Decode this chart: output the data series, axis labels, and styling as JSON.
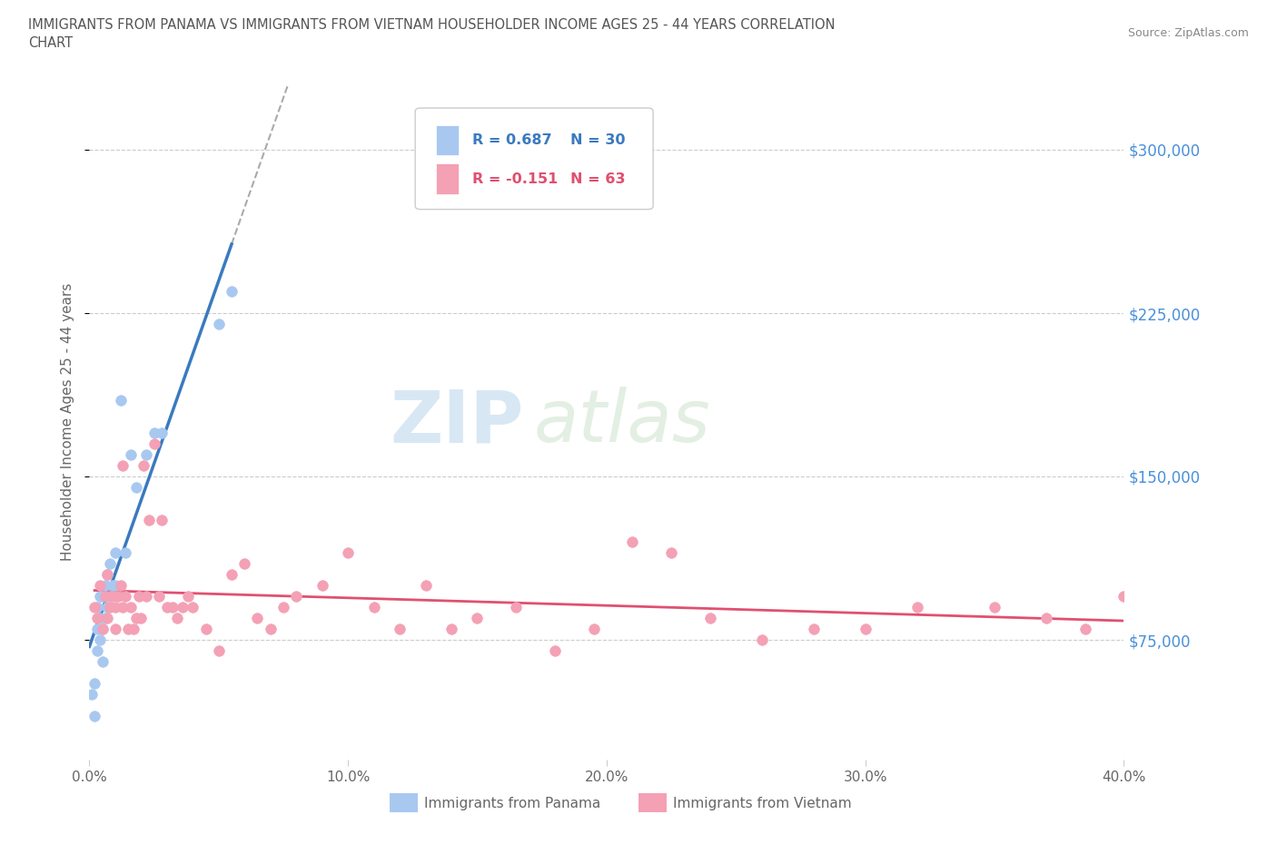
{
  "title_line1": "IMMIGRANTS FROM PANAMA VS IMMIGRANTS FROM VIETNAM HOUSEHOLDER INCOME AGES 25 - 44 YEARS CORRELATION",
  "title_line2": "CHART",
  "source_text": "Source: ZipAtlas.com",
  "ylabel": "Householder Income Ages 25 - 44 years",
  "xlim": [
    0.0,
    0.4
  ],
  "ylim": [
    20000,
    330000
  ],
  "yticks": [
    75000,
    150000,
    225000,
    300000
  ],
  "ytick_labels": [
    "$75,000",
    "$150,000",
    "$225,000",
    "$300,000"
  ],
  "xtick_labels": [
    "0.0%",
    "10.0%",
    "20.0%",
    "30.0%",
    "40.0%"
  ],
  "xticks": [
    0.0,
    0.1,
    0.2,
    0.3,
    0.4
  ],
  "panama_color": "#a8c8f0",
  "vietnam_color": "#f4a0b5",
  "panama_line_color": "#3a7abf",
  "vietnam_line_color": "#e05070",
  "legend_r_panama": "R = 0.687",
  "legend_n_panama": "N = 30",
  "legend_r_vietnam": "R = -0.151",
  "legend_n_vietnam": "N = 63",
  "watermark_zip": "ZIP",
  "watermark_atlas": "atlas",
  "background_color": "#ffffff",
  "grid_color": "#cccccc",
  "panama_x": [
    0.001,
    0.002,
    0.002,
    0.003,
    0.003,
    0.003,
    0.004,
    0.004,
    0.004,
    0.005,
    0.005,
    0.005,
    0.006,
    0.006,
    0.007,
    0.007,
    0.008,
    0.008,
    0.009,
    0.01,
    0.01,
    0.012,
    0.014,
    0.016,
    0.018,
    0.022,
    0.025,
    0.028,
    0.05,
    0.055
  ],
  "panama_y": [
    50000,
    40000,
    55000,
    70000,
    80000,
    90000,
    75000,
    85000,
    95000,
    65000,
    80000,
    95000,
    85000,
    100000,
    90000,
    105000,
    95000,
    110000,
    100000,
    100000,
    115000,
    185000,
    115000,
    160000,
    145000,
    160000,
    170000,
    170000,
    220000,
    235000
  ],
  "vietnam_x": [
    0.002,
    0.003,
    0.004,
    0.005,
    0.006,
    0.007,
    0.007,
    0.008,
    0.009,
    0.01,
    0.01,
    0.011,
    0.012,
    0.013,
    0.013,
    0.014,
    0.015,
    0.016,
    0.017,
    0.018,
    0.019,
    0.02,
    0.021,
    0.022,
    0.023,
    0.025,
    0.027,
    0.028,
    0.03,
    0.032,
    0.034,
    0.036,
    0.038,
    0.04,
    0.045,
    0.05,
    0.055,
    0.06,
    0.065,
    0.07,
    0.075,
    0.08,
    0.09,
    0.1,
    0.11,
    0.12,
    0.13,
    0.14,
    0.15,
    0.165,
    0.18,
    0.195,
    0.21,
    0.225,
    0.24,
    0.26,
    0.28,
    0.3,
    0.32,
    0.35,
    0.37,
    0.385,
    0.4
  ],
  "vietnam_y": [
    90000,
    85000,
    100000,
    80000,
    95000,
    105000,
    85000,
    90000,
    95000,
    90000,
    80000,
    95000,
    100000,
    90000,
    155000,
    95000,
    80000,
    90000,
    80000,
    85000,
    95000,
    85000,
    155000,
    95000,
    130000,
    165000,
    95000,
    130000,
    90000,
    90000,
    85000,
    90000,
    95000,
    90000,
    80000,
    70000,
    105000,
    110000,
    85000,
    80000,
    90000,
    95000,
    100000,
    115000,
    90000,
    80000,
    100000,
    80000,
    85000,
    90000,
    70000,
    80000,
    120000,
    115000,
    85000,
    75000,
    80000,
    80000,
    90000,
    90000,
    85000,
    80000,
    95000
  ]
}
